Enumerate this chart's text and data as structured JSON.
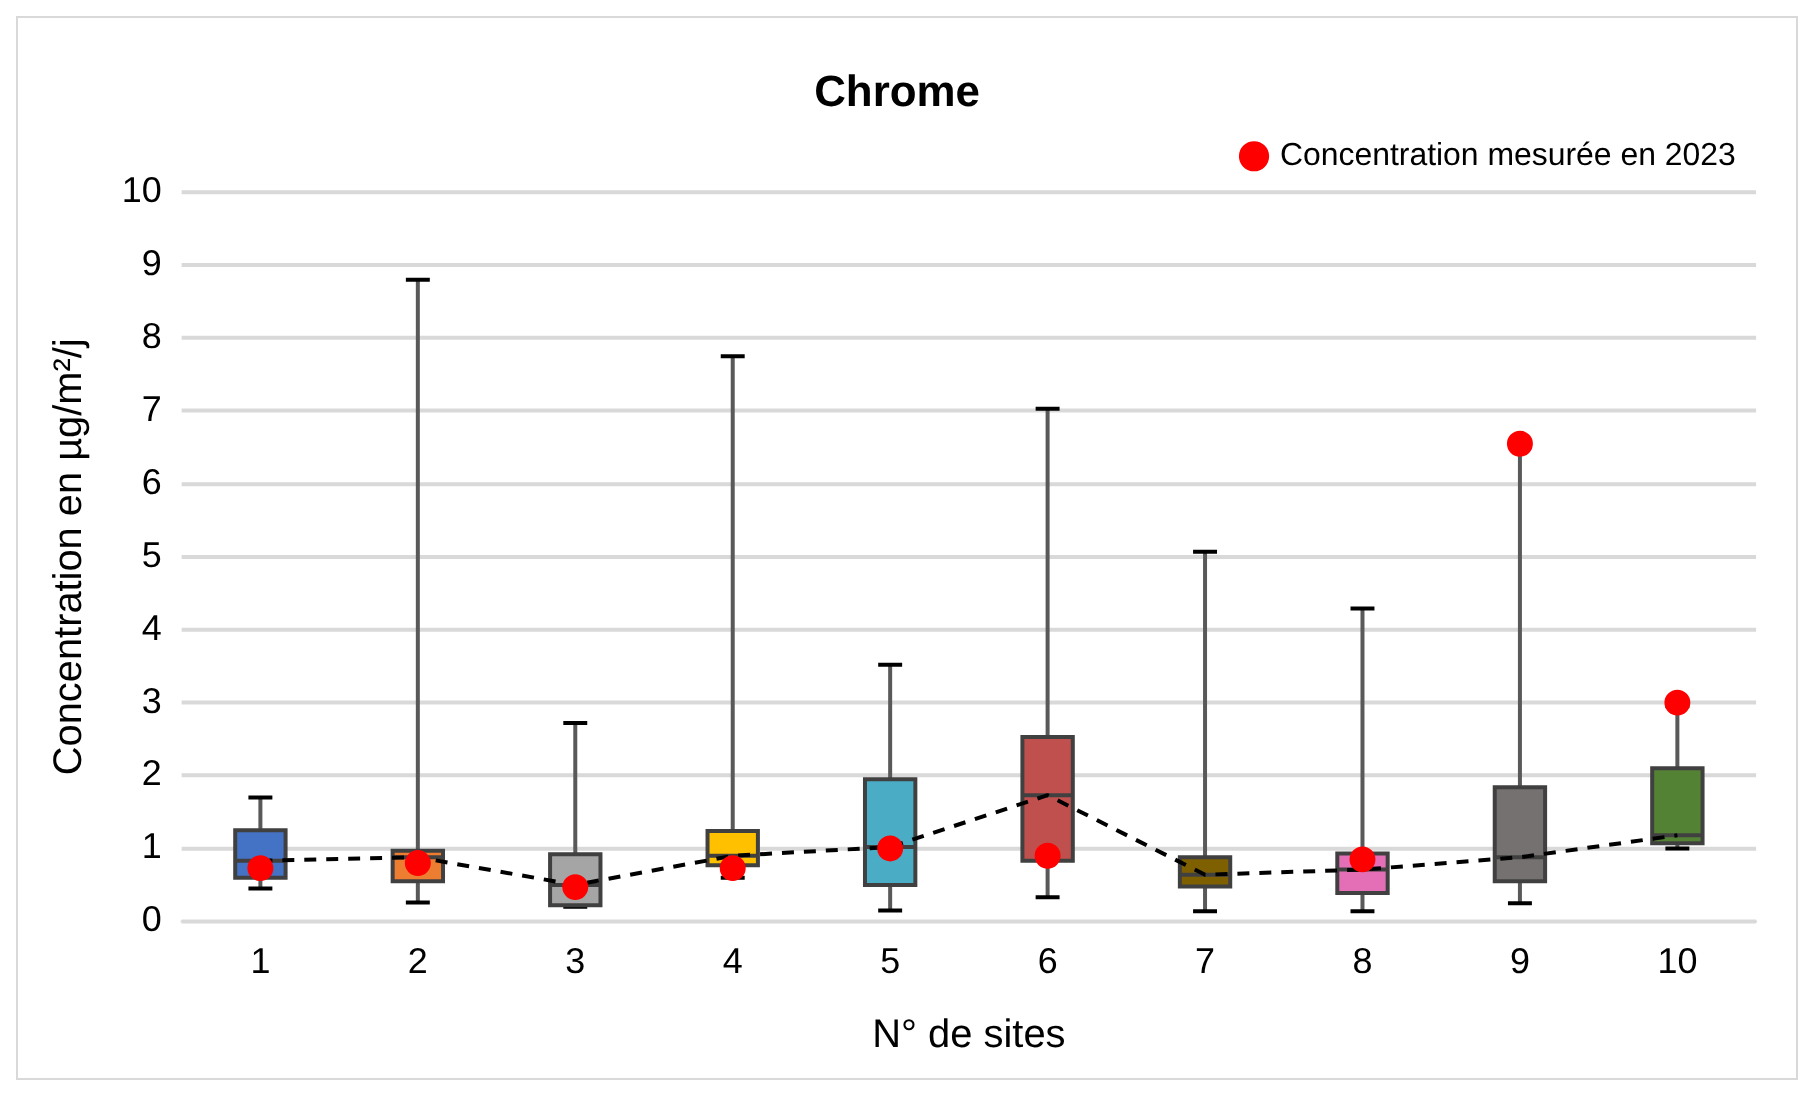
{
  "chart_data": {
    "type": "box",
    "title": "Chrome",
    "xlabel": "N° de sites",
    "ylabel": "Concentration en µg/m²/j",
    "categories": [
      "1",
      "2",
      "3",
      "4",
      "5",
      "6",
      "7",
      "8",
      "9",
      "10"
    ],
    "ylim": [
      0,
      10
    ],
    "yticks": [
      0,
      1,
      2,
      3,
      4,
      5,
      6,
      7,
      8,
      9,
      10
    ],
    "grid": "y",
    "legend": "top right",
    "colors": [
      "#4472c4",
      "#ed7d31",
      "#a5a5a5",
      "#ffc000",
      "#4bacc6",
      "#c0504d",
      "#7f6000",
      "#e46fb7",
      "#767171",
      "#548235"
    ],
    "boxes": [
      {
        "low": 0.45,
        "q1": 0.6,
        "median": 0.83,
        "q3": 1.25,
        "high": 1.7
      },
      {
        "low": 0.26,
        "q1": 0.55,
        "median": 0.88,
        "q3": 0.97,
        "high": 8.8
      },
      {
        "low": 0.2,
        "q1": 0.22,
        "median": 0.5,
        "q3": 0.92,
        "high": 2.72
      },
      {
        "low": 0.6,
        "q1": 0.77,
        "median": 0.9,
        "q3": 1.24,
        "high": 7.75
      },
      {
        "low": 0.15,
        "q1": 0.5,
        "median": 1.02,
        "q3": 1.95,
        "high": 3.52
      },
      {
        "low": 0.33,
        "q1": 0.83,
        "median": 1.73,
        "q3": 2.53,
        "high": 7.03
      },
      {
        "low": 0.14,
        "q1": 0.48,
        "median": 0.64,
        "q3": 0.88,
        "high": 5.07
      },
      {
        "low": 0.14,
        "q1": 0.39,
        "median": 0.71,
        "q3": 0.93,
        "high": 4.29
      },
      {
        "low": 0.25,
        "q1": 0.55,
        "median": 0.88,
        "q3": 1.84,
        "high": 6.53
      },
      {
        "low": 1.0,
        "q1": 1.07,
        "median": 1.18,
        "q3": 2.1,
        "high": 2.95
      }
    ],
    "series": [
      {
        "type": "line",
        "line_style": "dashed",
        "marker": "none",
        "color": "#000000",
        "values": [
          0.83,
          0.88,
          0.5,
          0.9,
          1.02,
          1.73,
          0.64,
          0.71,
          0.88,
          1.18
        ]
      },
      {
        "type": "scatter",
        "name": "Concentration mesurée en 2023",
        "marker": "circle",
        "color": "#ff0000",
        "x": [
          "1",
          "2",
          "3",
          "4",
          "5",
          "6",
          "7",
          "8",
          "9",
          "10"
        ],
        "values": [
          0.73,
          0.8,
          0.47,
          0.73,
          1.0,
          0.9,
          null,
          0.85,
          6.55,
          3.0
        ]
      }
    ]
  }
}
